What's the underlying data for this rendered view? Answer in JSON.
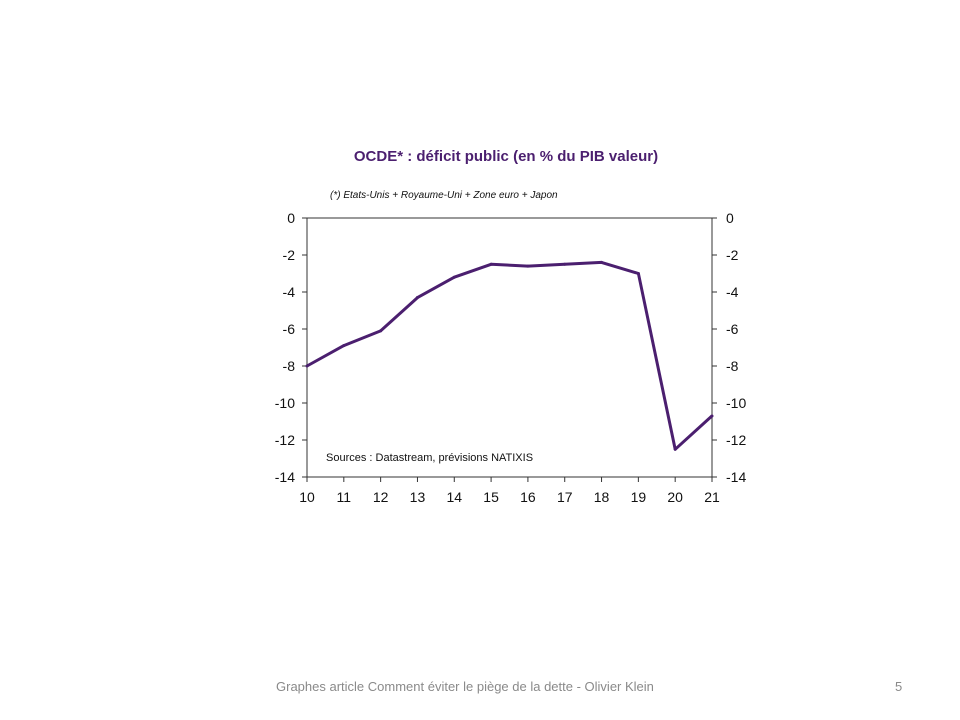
{
  "chart_data": {
    "type": "line",
    "title": "OCDE* : déficit public (en % du PIB valeur)",
    "note": "(*) Etats-Unis + Royaume-Uni + Zone euro + Japon",
    "source": "Sources : Datastream, prévisions NATIXIS",
    "categories": [
      "10",
      "11",
      "12",
      "13",
      "14",
      "15",
      "16",
      "17",
      "18",
      "19",
      "20",
      "21"
    ],
    "series": [
      {
        "values": [
          -8.0,
          -6.9,
          -6.1,
          -4.3,
          -3.2,
          -2.5,
          -2.6,
          -2.5,
          -2.4,
          -3.0,
          -12.5,
          -10.7
        ]
      }
    ],
    "ylim": [
      -14,
      0
    ],
    "yticks": [
      0,
      -2,
      -4,
      -6,
      -8,
      -10,
      -12,
      -14
    ],
    "secondary_y_axis": true,
    "grid": false,
    "line_color": "#4b1f6f"
  },
  "footer": {
    "text": "Graphes article Comment  éviter le piège de la dette - Olivier Klein",
    "page_number": "5"
  }
}
